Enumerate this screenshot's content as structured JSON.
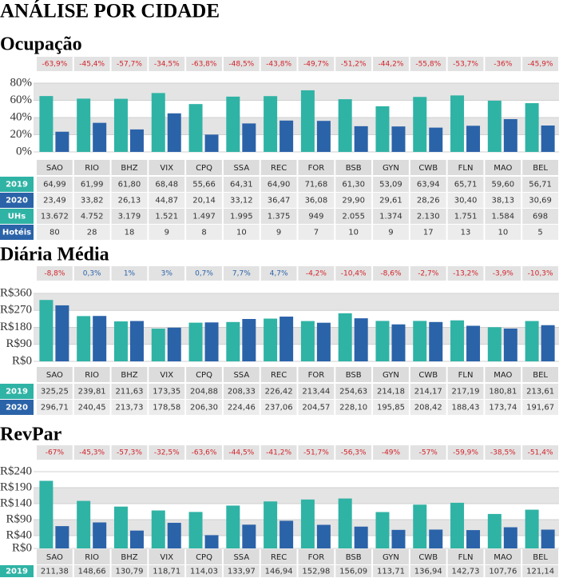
{
  "title": "ANÁLISE POR CIDADE",
  "chart_data": [
    {
      "type": "bar",
      "title": "Ocupação",
      "categories": [
        "SAO",
        "RIO",
        "BHZ",
        "VIX",
        "CPQ",
        "SSA",
        "REC",
        "FOR",
        "BSB",
        "GYN",
        "CWB",
        "FLN",
        "MAO",
        "BEL"
      ],
      "change_labels": [
        "-63,9%",
        "-45,4%",
        "-57,7%",
        "-34,5%",
        "-63,8%",
        "-48,5%",
        "-43,8%",
        "-49,7%",
        "-51,2%",
        "-44,2%",
        "-55,8%",
        "-53,7%",
        "-36%",
        "-45,9%"
      ],
      "series": [
        {
          "name": "2019",
          "color": "#2fb3a5",
          "values": [
            64.99,
            61.99,
            61.8,
            68.48,
            55.66,
            64.31,
            64.9,
            71.68,
            61.3,
            53.09,
            63.94,
            65.71,
            59.6,
            56.71
          ],
          "value_labels": [
            "64,99",
            "61,99",
            "61,80",
            "68,48",
            "55,66",
            "64,31",
            "64,90",
            "71,68",
            "61,30",
            "53,09",
            "63,94",
            "65,71",
            "59,60",
            "56,71"
          ]
        },
        {
          "name": "2020",
          "color": "#2b63a9",
          "values": [
            23.49,
            33.82,
            26.13,
            44.87,
            20.14,
            33.12,
            36.47,
            36.08,
            29.9,
            29.61,
            28.26,
            30.4,
            38.13,
            30.69
          ],
          "value_labels": [
            "23,49",
            "33,82",
            "26,13",
            "44,87",
            "20,14",
            "33,12",
            "36,47",
            "36,08",
            "29,90",
            "29,61",
            "28,26",
            "30,40",
            "38,13",
            "30,69"
          ]
        }
      ],
      "table_rows": [
        {
          "name": "UHs",
          "color": "#2fb3a5",
          "values": [
            13672,
            4752,
            3179,
            1521,
            1497,
            1995,
            1375,
            949,
            2055,
            1374,
            2130,
            1751,
            1584,
            698
          ],
          "value_labels": [
            "13.672",
            "4.752",
            "3.179",
            "1.521",
            "1.497",
            "1.995",
            "1.375",
            "949",
            "2.055",
            "1.374",
            "2.130",
            "1.751",
            "1.584",
            "698"
          ]
        },
        {
          "name": "Hotéis",
          "color": "#2b63a9",
          "values": [
            80,
            28,
            18,
            9,
            8,
            10,
            9,
            7,
            10,
            9,
            17,
            13,
            10,
            5
          ]
        }
      ],
      "ylim": [
        0,
        80
      ],
      "yticks": [
        {
          "value": 0,
          "label": "0%"
        },
        {
          "value": 20,
          "label": "20%"
        },
        {
          "value": 40,
          "label": "40%"
        },
        {
          "value": 60,
          "label": "60%"
        },
        {
          "value": 80,
          "label": "80%"
        }
      ],
      "grid": true
    },
    {
      "type": "bar",
      "title": "Diária Média",
      "categories": [
        "SAO",
        "RIO",
        "BHZ",
        "VIX",
        "CPQ",
        "SSA",
        "REC",
        "FOR",
        "BSB",
        "GYN",
        "CWB",
        "FLN",
        "MAO",
        "BEL"
      ],
      "change_labels": [
        "-8,8%",
        "0,3%",
        "1%",
        "3%",
        "0,7%",
        "7,7%",
        "4,7%",
        "-4,2%",
        "-10,4%",
        "-8,6%",
        "-2,7%",
        "-13,2%",
        "-3,9%",
        "-10,3%"
      ],
      "series": [
        {
          "name": "2019",
          "color": "#2fb3a5",
          "values": [
            325.25,
            239.81,
            211.63,
            173.35,
            204.88,
            208.33,
            226.42,
            213.44,
            254.63,
            214.18,
            214.17,
            217.19,
            180.81,
            213.61
          ],
          "value_labels": [
            "325,25",
            "239,81",
            "211,63",
            "173,35",
            "204,88",
            "208,33",
            "226,42",
            "213,44",
            "254,63",
            "214,18",
            "214,17",
            "217,19",
            "180,81",
            "213,61"
          ]
        },
        {
          "name": "2020",
          "color": "#2b63a9",
          "values": [
            296.71,
            240.45,
            213.73,
            178.58,
            206.3,
            224.46,
            237.06,
            204.57,
            228.1,
            195.85,
            208.42,
            188.43,
            173.74,
            191.67
          ],
          "value_labels": [
            "296,71",
            "240,45",
            "213,73",
            "178,58",
            "206,30",
            "224,46",
            "237,06",
            "204,57",
            "228,10",
            "195,85",
            "208,42",
            "188,43",
            "173,74",
            "191,67"
          ]
        }
      ],
      "ylim": [
        0,
        360
      ],
      "yticks": [
        {
          "value": 0,
          "label": "R$0"
        },
        {
          "value": 90,
          "label": "R$90"
        },
        {
          "value": 180,
          "label": "R$180"
        },
        {
          "value": 270,
          "label": "R$270"
        },
        {
          "value": 360,
          "label": "R$360"
        }
      ],
      "grid": true
    },
    {
      "type": "bar",
      "title": "RevPar",
      "categories": [
        "SAO",
        "RIO",
        "BHZ",
        "VIX",
        "CPQ",
        "SSA",
        "REC",
        "FOR",
        "BSB",
        "GYN",
        "CWB",
        "FLN",
        "MAO",
        "BEL"
      ],
      "change_labels": [
        "-67%",
        "-45,3%",
        "-57,3%",
        "-32,5%",
        "-63,6%",
        "-44,5%",
        "-41,2%",
        "-51,7%",
        "-56,3%",
        "-49%",
        "-57%",
        "-59,9%",
        "-38,5%",
        "-51,4%"
      ],
      "series": [
        {
          "name": "2019",
          "color": "#2fb3a5",
          "values": [
            211.38,
            148.66,
            130.79,
            118.71,
            114.03,
            133.97,
            146.94,
            152.98,
            156.09,
            113.71,
            136.94,
            142.73,
            107.76,
            121.14
          ],
          "value_labels": [
            "211,38",
            "148,66",
            "130,79",
            "118,71",
            "114,03",
            "133,97",
            "146,94",
            "152,98",
            "156,09",
            "113,71",
            "136,94",
            "142,73",
            "107,76",
            "121,14"
          ]
        },
        {
          "color": "#2b63a9",
          "values": [
            69.7,
            81.3,
            55.8,
            80.1,
            41.5,
            74.3,
            86.5,
            73.8,
            68.2,
            58.0,
            58.9,
            57.3,
            66.2,
            58.8
          ]
        }
      ],
      "ylim": [
        0,
        240
      ],
      "yticks": [
        {
          "value": 0,
          "label": "R$0"
        },
        {
          "value": 40,
          "label": "R$40"
        },
        {
          "value": 90,
          "label": "R$90"
        },
        {
          "value": 140,
          "label": "R$140"
        },
        {
          "value": 190,
          "label": "R$190"
        },
        {
          "value": 240,
          "label": "R$240"
        }
      ],
      "grid": true
    }
  ]
}
